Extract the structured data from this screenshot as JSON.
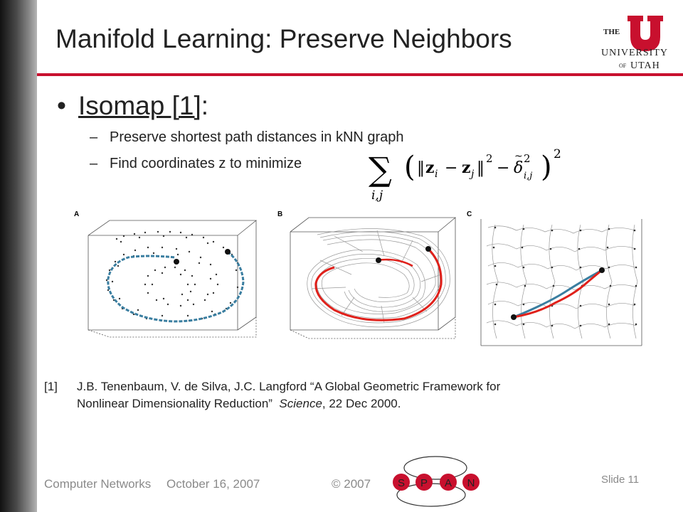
{
  "slide": {
    "title": "Manifold Learning: Preserve Neighbors",
    "bullet": {
      "symbol": "•",
      "main": "Isomap [1]",
      "suffix": ":"
    },
    "sub_items": [
      "Preserve shortest path distances in kNN graph",
      "Find coordinates z to minimize"
    ],
    "dash": "–",
    "panels": [
      "A",
      "B",
      "C"
    ],
    "reference": {
      "num": "[1]",
      "line1": "J.B. Tenenbaum, V. de Silva, J.C. Langford “A Global Geometric Framework for",
      "line2_a": "Nonlinear Dimensionality Reduction”  ",
      "line2_b": "Science",
      "line2_c": ", 22 Dec 2000."
    }
  },
  "logo": {
    "the": "THE",
    "university": "UNIVERSITY",
    "of": "OF",
    "utah": "UTAH",
    "accent": "#c8102e"
  },
  "footer": {
    "course": "Computer Networks",
    "date": "October 16, 2007",
    "copyright": "© 2007",
    "slide": "Slide 11"
  },
  "span_logo": {
    "letters": [
      "S",
      "P",
      "A",
      "N"
    ],
    "color": "#c8102e"
  },
  "colors": {
    "accent": "#c8102e",
    "path_blue": "#3a7ea0",
    "path_red": "#e0201a",
    "footer_gray": "#8a8a8a"
  }
}
